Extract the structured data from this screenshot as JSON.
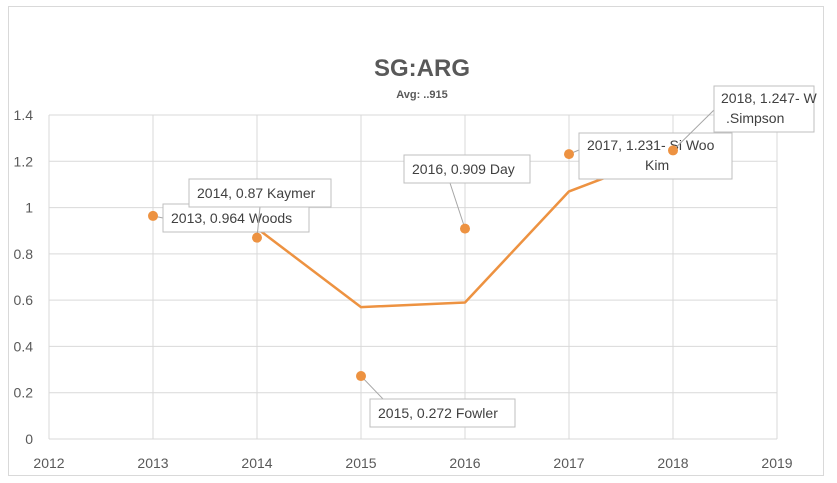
{
  "chart_data": {
    "type": "scatter",
    "title": "SG:ARG",
    "subtitle": "Avg: ..915",
    "xlabel": "",
    "ylabel": "",
    "xlim": [
      2012,
      2019
    ],
    "ylim": [
      0,
      1.4
    ],
    "x_ticks": [
      "2012",
      "2013",
      "2014",
      "2015",
      "2016",
      "2017",
      "2018",
      "2019"
    ],
    "y_ticks": [
      "0",
      "0.2",
      "0.4",
      "0.6",
      "0.8",
      "1",
      "1.2",
      "1.4"
    ],
    "grid": true,
    "legend": "none",
    "colors": {
      "series": "#ED9241",
      "grid": "#d9d9d9",
      "text": "#595959"
    },
    "series": [
      {
        "type": "scatter",
        "points": [
          {
            "x": 2013,
            "y": 0.964,
            "label": "2013, 0.964 Woods"
          },
          {
            "x": 2014,
            "y": 0.87,
            "label": "2014, 0.87 Kaymer"
          },
          {
            "x": 2015,
            "y": 0.272,
            "label": "2015, 0.272 Fowler"
          },
          {
            "x": 2016,
            "y": 0.909,
            "label": "2016, 0.909 Day"
          },
          {
            "x": 2017,
            "y": 1.231,
            "label": "2017, 1.231- Si Woo Kim"
          },
          {
            "x": 2018,
            "y": 1.247,
            "label": "2018, 1.247- W.Simpson"
          }
        ]
      },
      {
        "type": "line",
        "points": [
          {
            "x": 2014,
            "y": 0.91
          },
          {
            "x": 2015,
            "y": 0.57
          },
          {
            "x": 2016,
            "y": 0.59
          },
          {
            "x": 2017,
            "y": 1.07
          },
          {
            "x": 2018,
            "y": 1.24
          }
        ]
      }
    ]
  }
}
